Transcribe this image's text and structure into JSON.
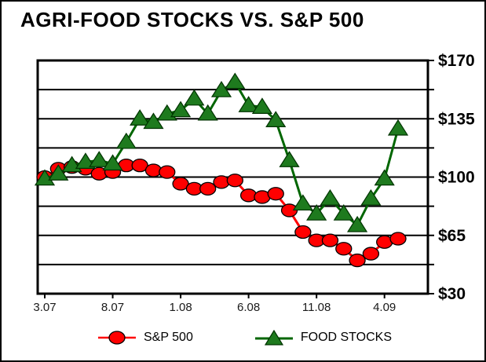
{
  "title": "AGRI-FOOD STOCKS VS. S&P 500",
  "colors": {
    "sp500_line": "#FF0000",
    "sp500_fill": "#FF0000",
    "food_line": "#006600",
    "food_fill": "#1E7A1E",
    "axis": "#000000",
    "background": "#FFFFFF"
  },
  "chart_data": {
    "type": "line",
    "title": "AGRI-FOOD STOCKS VS. S&P 500",
    "xlabel": "",
    "ylabel": "",
    "ylim": [
      30,
      170
    ],
    "gridline_step": 17.5,
    "grid": "horizontal-only",
    "legend_position": "bottom",
    "x": [
      "3.07",
      "4.07",
      "5.07",
      "6.07",
      "7.07",
      "8.07",
      "9.07",
      "10.07",
      "11.07",
      "12.07",
      "1.08",
      "2.08",
      "3.08",
      "4.08",
      "5.08",
      "6.08",
      "7.08",
      "8.08",
      "9.08",
      "10.08",
      "11.08",
      "12.08",
      "1.09",
      "2.09",
      "3.09",
      "4.09",
      "5.09"
    ],
    "x_ticks": [
      {
        "label": "3.07",
        "i": 0
      },
      {
        "label": "8.07",
        "i": 5
      },
      {
        "label": "1.08",
        "i": 10
      },
      {
        "label": "6.08",
        "i": 15
      },
      {
        "label": "11.08",
        "i": 20
      },
      {
        "label": "4.09",
        "i": 25
      }
    ],
    "y_ticks": [
      {
        "label": "$170",
        "v": 170
      },
      {
        "label": "$135",
        "v": 135
      },
      {
        "label": "$100",
        "v": 100
      },
      {
        "label": "$65",
        "v": 65
      },
      {
        "label": "$30",
        "v": 30
      }
    ],
    "series": [
      {
        "name": "S&P 500",
        "marker": "circle",
        "line_color": "#FF0000",
        "fill_color": "#FF0000",
        "values": [
          100,
          105,
          106,
          105,
          102,
          103,
          107,
          107,
          104,
          103,
          96,
          93,
          93,
          97,
          98,
          89,
          88,
          90,
          80,
          67,
          62,
          62,
          57,
          50,
          54,
          61,
          63
        ]
      },
      {
        "name": "FOOD STOCKS",
        "marker": "triangle",
        "line_color": "#006600",
        "fill_color": "#1E7A1E",
        "values": [
          99,
          102,
          107,
          109,
          110,
          108,
          121,
          135,
          133,
          138,
          140,
          147,
          138,
          152,
          157,
          143,
          142,
          134,
          110,
          84,
          78,
          87,
          78,
          71,
          87,
          99,
          129
        ]
      }
    ]
  },
  "legend": {
    "sp500_label": "S&P 500",
    "food_label": "FOOD STOCKS"
  }
}
